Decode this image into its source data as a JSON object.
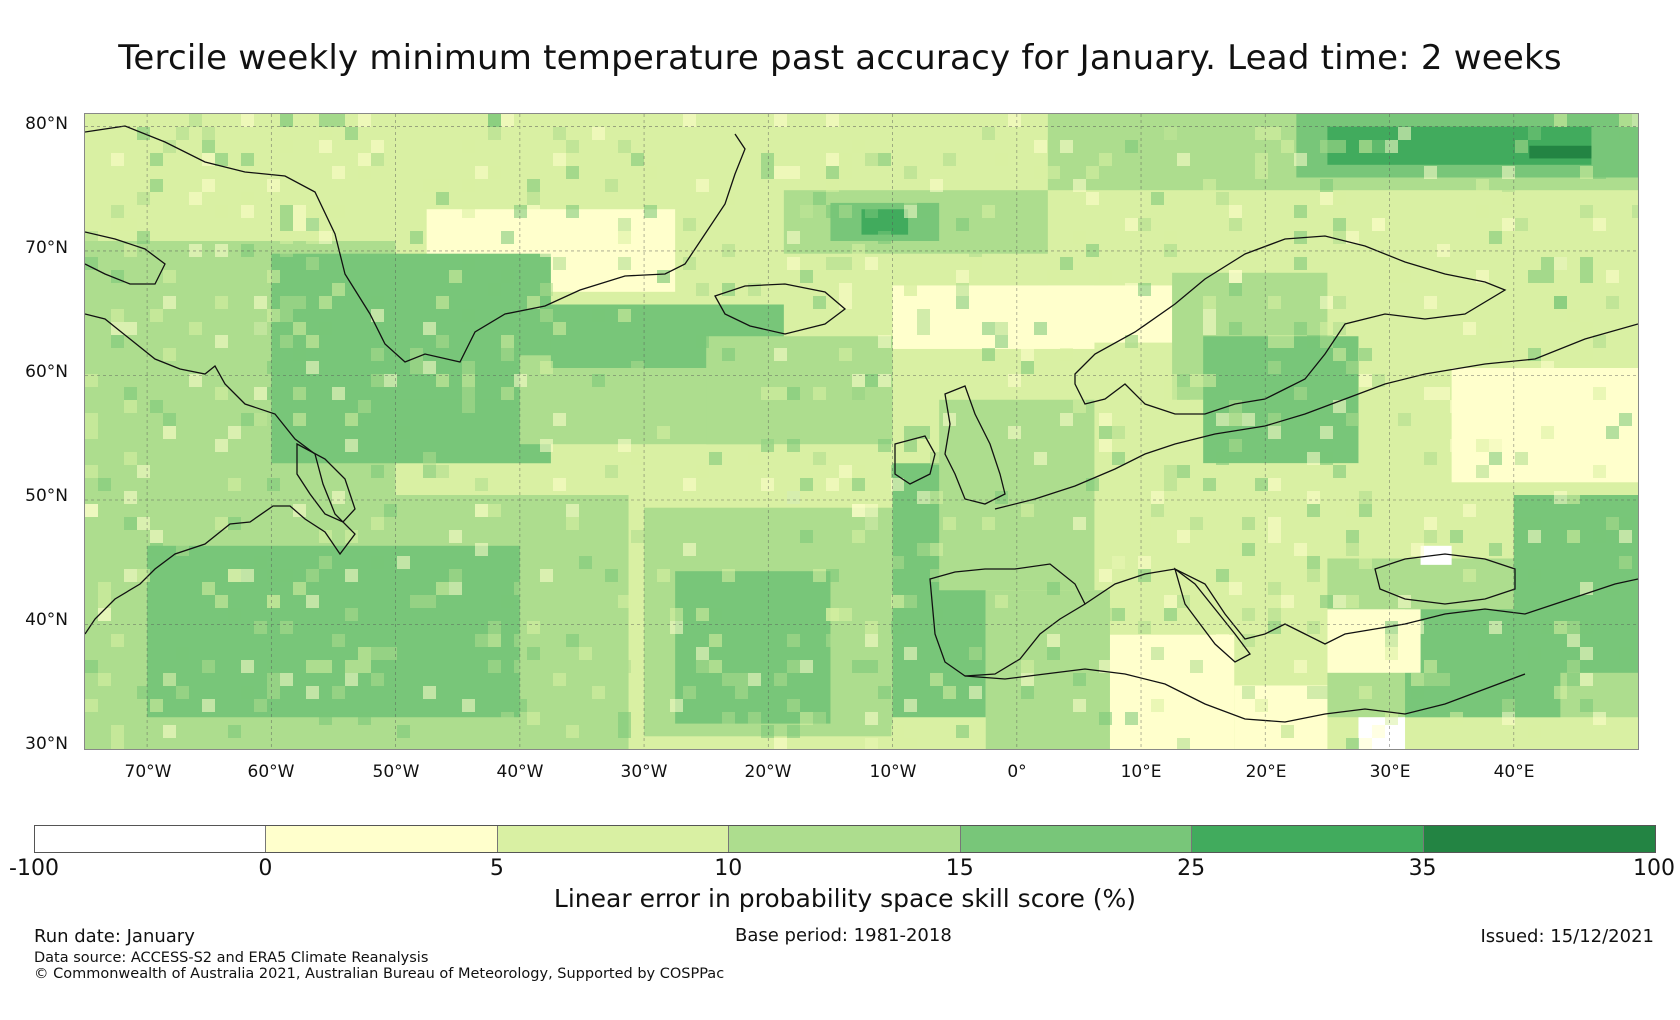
{
  "title": "Tercile weekly minimum temperature past accuracy for January. Lead time: 2 weeks",
  "map": {
    "lat_labels": [
      "80°N",
      "70°N",
      "60°N",
      "50°N",
      "40°N",
      "30°N"
    ],
    "lon_labels": [
      "70°W",
      "60°W",
      "50°W",
      "40°W",
      "30°W",
      "20°W",
      "10°W",
      "0°",
      "10°E",
      "20°E",
      "30°E",
      "40°E"
    ],
    "lat_range": [
      30,
      81
    ],
    "lon_range": [
      -75,
      50
    ]
  },
  "colorbar": {
    "title": "Linear error in probability space skill score (%)",
    "boundaries": [
      "-100",
      "0",
      "5",
      "10",
      "15",
      "25",
      "35",
      "100"
    ],
    "colors": [
      "#ffffff",
      "#ffffcc",
      "#d9f0a3",
      "#addd8e",
      "#78c679",
      "#41ab5d",
      "#238443"
    ]
  },
  "footer": {
    "run_date": "Run date: January",
    "base_period": "Base period: 1981-2018",
    "issued": "Issued: 15/12/2021",
    "data_source": "Data source: ACCESS-S2 and ERA5 Climate Reanalysis",
    "copyright": "© Commonwealth of Australia 2021, Australian Bureau of Meteorology, Supported by COSPPac"
  }
}
